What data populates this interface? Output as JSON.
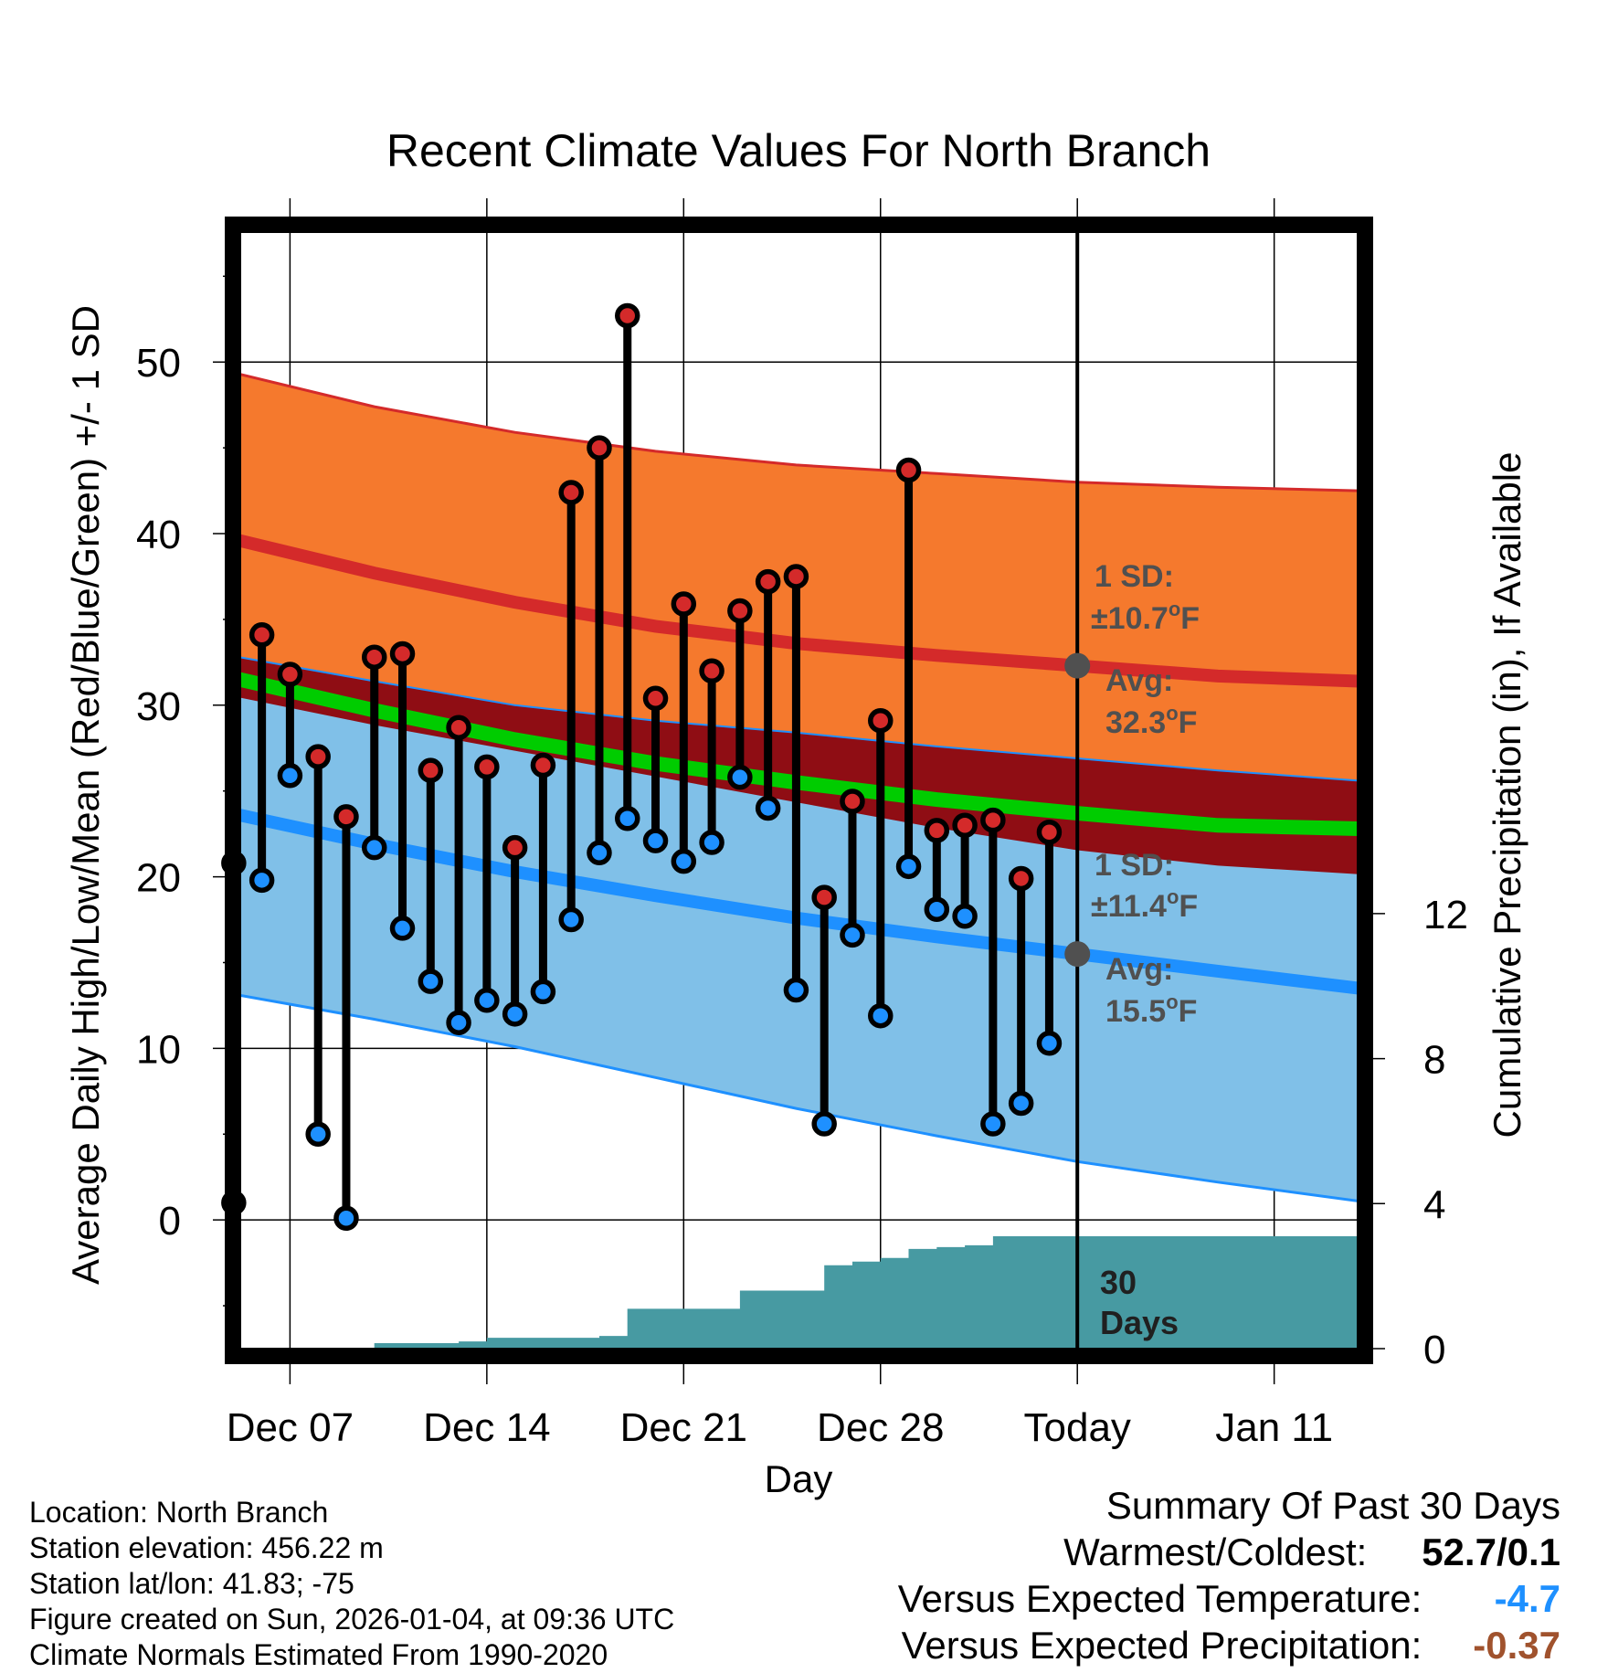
{
  "chart_data": {
    "type": "line",
    "title": "Recent Climate Values For North Branch",
    "xlabel": "Day",
    "ylabel_left": "Average Daily High/Low/Mean (Red/Blue/Green) +/- 1 SD",
    "ylabel_right": "Cumulative Precipitation (in), If Available",
    "x_range_days": [
      -29.8,
      10.0
    ],
    "ylim_left": [
      -7.5,
      58
    ],
    "ylim_right": [
      0,
      31
    ],
    "x_ticks": [
      {
        "x": -28,
        "label": "Dec 07"
      },
      {
        "x": -21,
        "label": "Dec 14"
      },
      {
        "x": -14,
        "label": "Dec 21"
      },
      {
        "x": -7,
        "label": "Dec 28"
      },
      {
        "x": 0,
        "label": "Today"
      },
      {
        "x": 7,
        "label": "Jan 11"
      }
    ],
    "y_ticks_left": [
      0,
      10,
      20,
      30,
      40,
      50
    ],
    "y_ticks_right": [
      0,
      4,
      8,
      12
    ],
    "normals": {
      "x": [
        -29.8,
        -25,
        -20,
        -15,
        -10,
        -5,
        0,
        5,
        10
      ],
      "high_avg": [
        39.6,
        37.7,
        36.0,
        34.6,
        33.6,
        32.9,
        32.3,
        31.7,
        31.4
      ],
      "high_upper": [
        49.3,
        47.4,
        45.9,
        44.8,
        44.0,
        43.5,
        43.0,
        42.7,
        42.5
      ],
      "high_lower": [
        30.5,
        28.9,
        27.4,
        25.9,
        24.4,
        22.9,
        21.6,
        20.7,
        20.2
      ],
      "mean_avg": [
        31.5,
        29.7,
        28.0,
        26.6,
        25.5,
        24.5,
        23.7,
        23.0,
        22.8
      ],
      "low_avg": [
        23.6,
        21.9,
        20.3,
        18.9,
        17.6,
        16.5,
        15.5,
        14.5,
        13.5
      ],
      "low_upper": [
        32.8,
        31.4,
        30.0,
        29.1,
        28.4,
        27.6,
        26.9,
        26.2,
        25.6
      ],
      "low_lower": [
        13.1,
        11.7,
        10.1,
        8.3,
        6.5,
        4.9,
        3.4,
        2.2,
        1.1
      ]
    },
    "series": [
      {
        "name": "Daily High",
        "color": "#d42a2a",
        "x": [
          -30,
          -29,
          -28,
          -27,
          -26,
          -25,
          -24,
          -23,
          -22,
          -21,
          -20,
          -19,
          -18,
          -17,
          -16,
          -15,
          -14,
          -13,
          -12,
          -11,
          -10,
          -9,
          -8,
          -7,
          -6,
          -5,
          -4,
          -3,
          -2,
          -1
        ],
        "values": [
          20.8,
          34.1,
          31.8,
          27.0,
          23.5,
          32.8,
          33.0,
          26.2,
          28.7,
          26.4,
          21.7,
          26.5,
          42.4,
          45.0,
          52.7,
          30.4,
          35.9,
          32.0,
          35.5,
          37.2,
          37.5,
          18.8,
          24.4,
          29.1,
          43.7,
          22.7,
          23.0,
          23.3,
          19.9,
          22.6
        ]
      },
      {
        "name": "Daily Low",
        "color": "#1e90ff",
        "x": [
          -30,
          -29,
          -28,
          -27,
          -26,
          -25,
          -24,
          -23,
          -22,
          -21,
          -20,
          -19,
          -18,
          -17,
          -16,
          -15,
          -14,
          -13,
          -12,
          -11,
          -10,
          -9,
          -8,
          -7,
          -6,
          -5,
          -4,
          -3,
          -2,
          -1
        ],
        "values": [
          1.0,
          19.8,
          25.9,
          5.0,
          0.1,
          21.7,
          17.0,
          13.9,
          11.5,
          12.8,
          12.0,
          13.3,
          17.5,
          21.4,
          23.4,
          22.1,
          20.9,
          22.0,
          25.8,
          24.0,
          13.4,
          5.6,
          16.6,
          11.9,
          20.6,
          18.1,
          17.7,
          5.6,
          6.8,
          10.3
        ]
      },
      {
        "name": "Cumulative Precipitation",
        "color": "#479aa2",
        "x": [
          -26,
          -25,
          -24,
          -23,
          -22,
          -21,
          -20,
          -19,
          -18,
          -17,
          -16,
          -15,
          -14,
          -13,
          -12,
          -11,
          -10,
          -9,
          -8,
          -7,
          -6,
          -5,
          -4,
          -3,
          -2,
          -1,
          0,
          1,
          2,
          3,
          4,
          5,
          6,
          7,
          8,
          9,
          10
        ],
        "values": [
          0,
          0.15,
          0.15,
          0.15,
          0.2,
          0.3,
          0.3,
          0.3,
          0.3,
          0.35,
          1.1,
          1.1,
          1.1,
          1.1,
          1.6,
          1.6,
          1.6,
          2.3,
          2.4,
          2.5,
          2.75,
          2.8,
          2.85,
          3.1,
          3.1,
          3.1,
          3.1,
          3.1,
          3.1,
          3.1,
          3.1,
          3.1,
          3.1,
          3.1,
          3.1,
          3.1,
          3.1
        ]
      }
    ],
    "annotations": {
      "high": {
        "sd_label": "1 SD:",
        "sd_value": "±10.7",
        "avg_label": "Avg:",
        "avg_value": "32.3",
        "avg": 32.3
      },
      "low": {
        "sd_label": "1 SD:",
        "sd_value": "±11.4",
        "avg_label": "Avg:",
        "avg_value": "15.5",
        "avg": 15.5
      },
      "unit_sup": "o",
      "unit_letter": "F",
      "window_line1": "30",
      "window_line2": "Days"
    },
    "colors": {
      "high_band": "#f5792d",
      "high_line": "#d42a2a",
      "overlap_band": "#8f0d14",
      "mean_line": "#00cc00",
      "low_band": "#80c0e8",
      "low_line": "#1e90ff",
      "precip_fill": "#479aa2",
      "marker_gray": "#505050"
    }
  },
  "footer": {
    "location": "Location: North Branch",
    "elevation": "Station elevation: 456.22 m",
    "latlon": "Station lat/lon: 41.83; -75",
    "created": "Figure created on Sun, 2026-01-04, at 09:36 UTC",
    "normals": "Climate Normals Estimated From 1990-2020"
  },
  "summary": {
    "title": "Summary Of Past 30 Days",
    "warmest_label": "Warmest/Coldest:",
    "warmest_value": "52.7",
    "separator": "/",
    "coldest_value": "0.1",
    "temp_label": "Versus Expected Temperature:",
    "temp_value": "-4.7",
    "temp_color": "#1e90ff",
    "precip_label": "Versus Expected Precipitation:",
    "precip_value": "-0.37",
    "precip_color": "#a0522d"
  }
}
